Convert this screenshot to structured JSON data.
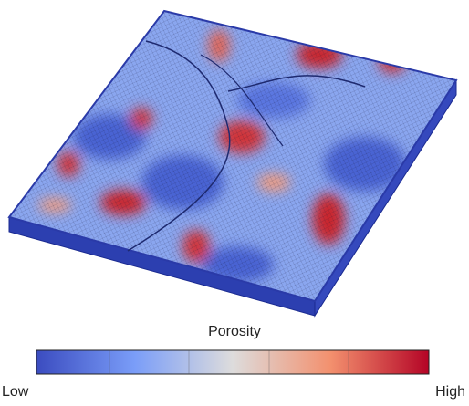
{
  "colorbar": {
    "title": "Porosity",
    "low_label": "Low",
    "high_label": "High"
  }
}
